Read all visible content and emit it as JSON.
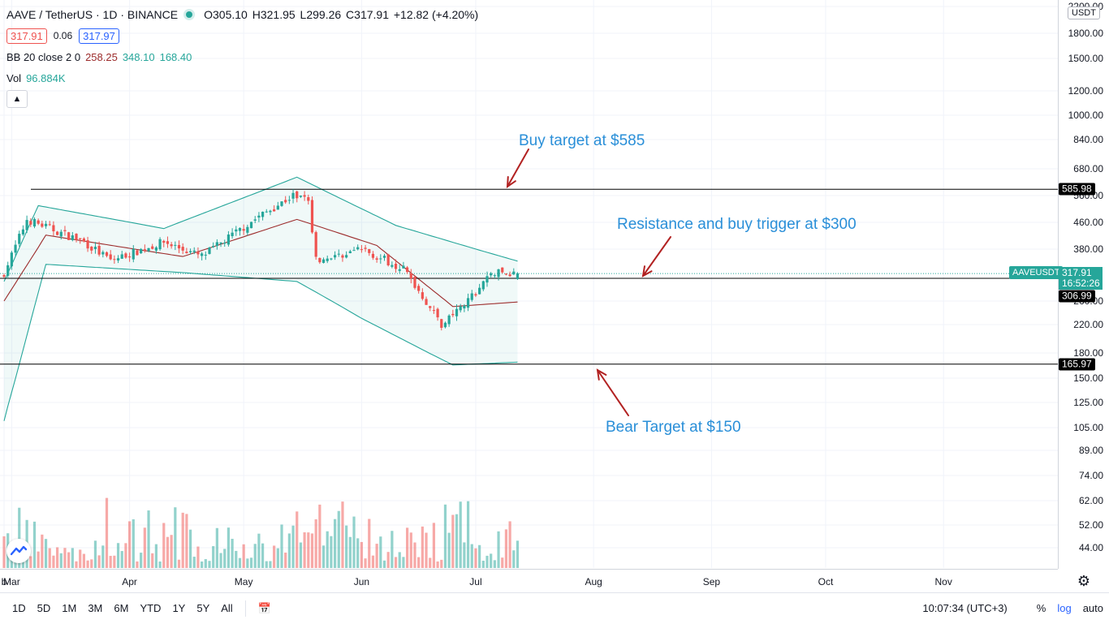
{
  "header": {
    "title": "AAVE / TetherUS · 1D · BINANCE",
    "ohlc": {
      "o": "O305.10",
      "h": "H321.95",
      "l": "L299.26",
      "c": "C317.91",
      "change": "+12.82 (+4.20%)"
    },
    "bid": "317.91",
    "spread": "0.06",
    "ask": "317.97",
    "bb_label": "BB 20 close 2 0",
    "bb_basis": "258.25",
    "bb_upper": "348.10",
    "bb_lower": "168.40",
    "vol_label": "Vol",
    "vol_value": "96.884K",
    "collapse_icon": "chevron-up-icon"
  },
  "price_scale": {
    "currency": "USDT",
    "ticks": [
      "2200.00",
      "1800.00",
      "1500.00",
      "1200.00",
      "1000.00",
      "840.00",
      "680.00",
      "560.00",
      "460.00",
      "380.00",
      "260.00",
      "220.00",
      "180.00",
      "150.00",
      "125.00",
      "105.00",
      "89.00",
      "74.00",
      "62.00",
      "52.00",
      "44.00"
    ],
    "tags": {
      "top": "585.98",
      "mid": "306.99",
      "low": "165.97"
    },
    "last": {
      "price": "317.91",
      "countdown": "16:52:26",
      "symbol": "AAVEUSDT"
    }
  },
  "time_axis": {
    "labels": [
      "b",
      "Mar",
      "Apr",
      "May",
      "Jun",
      "Jul",
      "Aug",
      "Sep",
      "Oct",
      "Nov"
    ]
  },
  "annotations": {
    "buy": "Buy target at $585",
    "resistance": "Resistance and buy trigger at $300",
    "bear": "Bear Target at $150"
  },
  "toolbar": {
    "ranges": [
      "1D",
      "5D",
      "1M",
      "3M",
      "6M",
      "YTD",
      "1Y",
      "5Y",
      "All"
    ],
    "clock": "10:07:34 (UTC+3)",
    "percent": "%",
    "log": "log",
    "auto": "auto"
  },
  "colors": {
    "up": "#26a69a",
    "down": "#ef5350",
    "basis": "#9c2b2b",
    "band": "#26a69a",
    "annotation": "#2a8fd8",
    "arrow": "#b22222"
  },
  "chart_data": {
    "type": "candlestick",
    "title": "AAVE / TetherUS · 1D · BINANCE",
    "y_scale": "log",
    "ylim": [
      40,
      2200
    ],
    "x": [
      "2021-02-27",
      "2021-03-01",
      "2021-04-01",
      "2021-05-01",
      "2021-06-01",
      "2021-07-01",
      "2021-07-12"
    ],
    "levels": [
      585.98,
      306.99,
      165.97
    ],
    "series": [
      {
        "name": "AAVEUSDT",
        "close_path": [
          [
            "2021-02-27",
            320
          ],
          [
            "2021-03-05",
            470
          ],
          [
            "2021-03-20",
            400
          ],
          [
            "2021-03-27",
            350
          ],
          [
            "2021-04-10",
            400
          ],
          [
            "2021-04-20",
            360
          ],
          [
            "2021-05-05",
            480
          ],
          [
            "2021-05-14",
            560
          ],
          [
            "2021-05-18",
            540
          ],
          [
            "2021-05-20",
            350
          ],
          [
            "2021-06-01",
            380
          ],
          [
            "2021-06-12",
            330
          ],
          [
            "2021-06-22",
            220
          ],
          [
            "2021-06-28",
            250
          ],
          [
            "2021-07-05",
            320
          ],
          [
            "2021-07-12",
            317.91
          ]
        ]
      },
      {
        "name": "BB basis",
        "values_at": [
          [
            "2021-02-27",
            260
          ],
          [
            "2021-03-10",
            420
          ],
          [
            "2021-04-15",
            360
          ],
          [
            "2021-05-15",
            470
          ],
          [
            "2021-06-05",
            390
          ],
          [
            "2021-06-25",
            250
          ],
          [
            "2021-07-12",
            258.25
          ]
        ]
      },
      {
        "name": "BB upper",
        "values_at": [
          [
            "2021-02-27",
            300
          ],
          [
            "2021-03-08",
            520
          ],
          [
            "2021-04-10",
            440
          ],
          [
            "2021-05-15",
            640
          ],
          [
            "2021-06-10",
            450
          ],
          [
            "2021-07-12",
            348.1
          ]
        ]
      },
      {
        "name": "BB lower",
        "values_at": [
          [
            "2021-02-27",
            110
          ],
          [
            "2021-03-10",
            340
          ],
          [
            "2021-04-15",
            320
          ],
          [
            "2021-05-15",
            300
          ],
          [
            "2021-06-01",
            230
          ],
          [
            "2021-06-25",
            165
          ],
          [
            "2021-07-12",
            168.4
          ]
        ]
      },
      {
        "name": "Vol",
        "last": 96884
      }
    ]
  }
}
